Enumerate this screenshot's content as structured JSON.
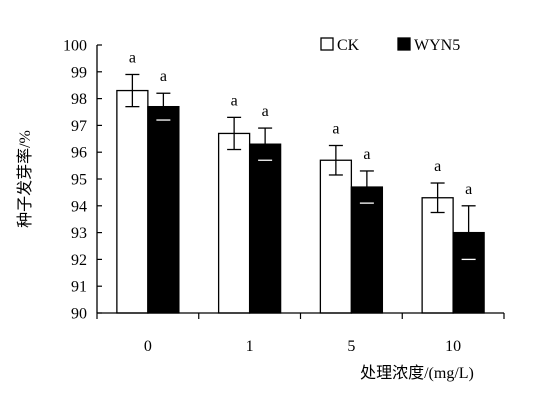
{
  "chart_data": {
    "type": "bar",
    "title": "",
    "xlabel": "处理浓度/(mg/L)",
    "ylabel": "种子发芽率/%",
    "categories": [
      "0",
      "1",
      "5",
      "10"
    ],
    "ylim": [
      90,
      100
    ],
    "yticks": [
      "90",
      "91",
      "92",
      "93",
      "94",
      "95",
      "96",
      "97",
      "98",
      "99",
      "100"
    ],
    "grid": false,
    "legend_position": "top-right",
    "series": [
      {
        "name": "CK",
        "fill": "#ffffff",
        "values": [
          98.3,
          96.7,
          95.7,
          94.3
        ],
        "errors": [
          0.6,
          0.6,
          0.55,
          0.55
        ],
        "labels": [
          "a",
          "a",
          "a",
          "a"
        ]
      },
      {
        "name": "WYN5",
        "fill": "#000000",
        "values": [
          97.7,
          96.3,
          94.7,
          93.0
        ],
        "errors": [
          0.5,
          0.6,
          0.6,
          1.0
        ],
        "labels": [
          "a",
          "a",
          "a",
          "a"
        ]
      }
    ]
  }
}
